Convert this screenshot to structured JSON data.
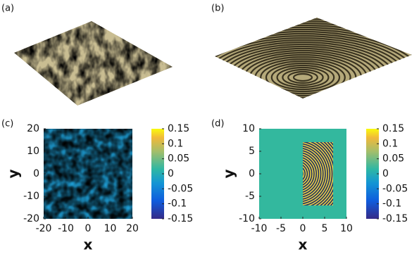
{
  "chart_data": [
    {
      "type": "surface",
      "label": "(a)"
    },
    {
      "type": "surface",
      "label": "(b)"
    },
    {
      "type": "heatmap",
      "label": "(c)",
      "xlabel": "x",
      "ylabel": "y",
      "xlim": [
        -20,
        20
      ],
      "xticks": [
        -20,
        -10,
        0,
        10,
        20
      ],
      "ylim": [
        -20,
        20
      ],
      "yticks": [
        -20,
        -10,
        0,
        10,
        20
      ],
      "clim": [
        -0.15,
        0.15
      ],
      "cticks": [
        0.15,
        0.1,
        0.05,
        0,
        -0.05,
        -0.1,
        -0.15
      ]
    },
    {
      "type": "heatmap",
      "label": "(d)",
      "xlabel": "x",
      "ylabel": "y",
      "xlim": [
        -10,
        10
      ],
      "xticks": [
        -10,
        -5,
        0,
        5,
        10
      ],
      "ylim": [
        -10,
        10
      ],
      "yticks": [
        -10,
        -5,
        0,
        5,
        10
      ],
      "clim": [
        -0.15,
        0.15
      ],
      "cticks": [
        0.15,
        0.1,
        0.05,
        0,
        -0.05,
        -0.1,
        -0.15
      ]
    }
  ]
}
